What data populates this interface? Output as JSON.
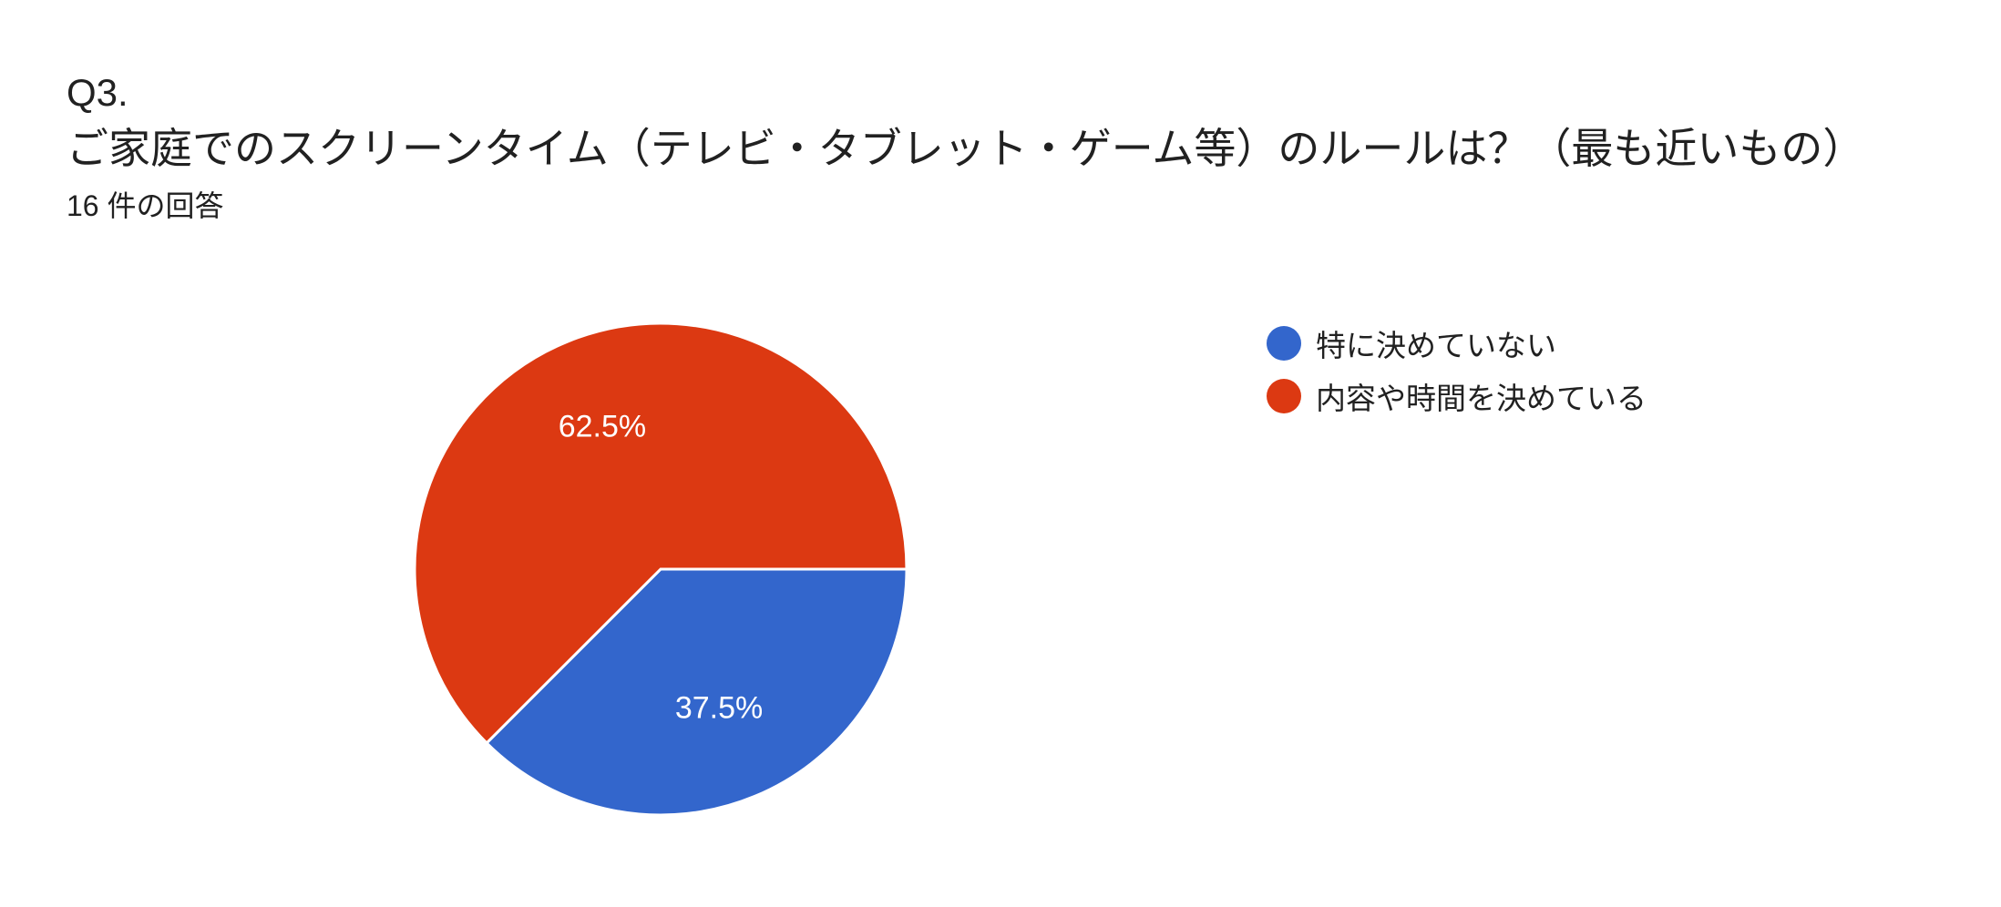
{
  "question": {
    "number": "Q3.",
    "title": "ご家庭でのスクリーンタイム（テレビ・タブレット・ゲーム等）のルールは？（最も近いもの）",
    "response_count": "16 件の回答"
  },
  "chart_data": {
    "type": "pie",
    "categories": [
      "特に決めていない",
      "内容や時間を決めている"
    ],
    "values": [
      37.5,
      62.5
    ],
    "labels": [
      "37.5%",
      "62.5%"
    ],
    "colors": [
      "#3366cc",
      "#dc3912"
    ],
    "legend_position": "right",
    "start_angle": "3 o'clock",
    "direction": "clockwise"
  }
}
